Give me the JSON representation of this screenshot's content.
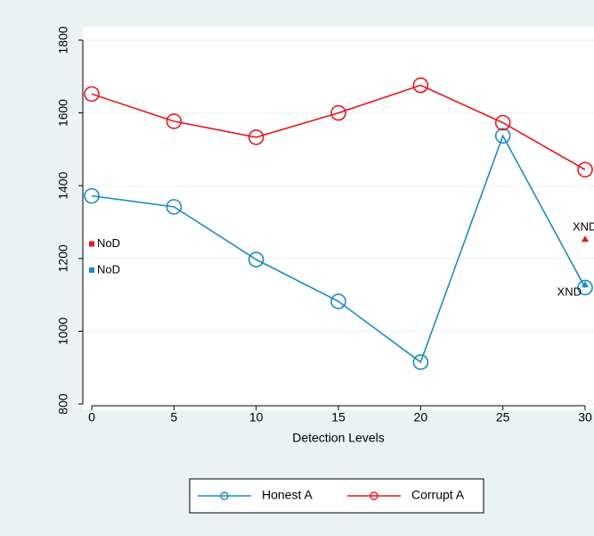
{
  "chart_data": {
    "type": "line",
    "x_label": "Detection Levels",
    "x": [
      0,
      5,
      10,
      15,
      20,
      25,
      30
    ],
    "series": [
      {
        "name": "Honest A",
        "color": "#1a8cbf",
        "values": [
          1372,
          1342,
          1197,
          1082,
          915,
          1537,
          1120
        ]
      },
      {
        "name": "Corrupt A",
        "color": "#e8161c",
        "values": [
          1652,
          1577,
          1533,
          1600,
          1676,
          1573,
          1444
        ]
      }
    ],
    "annotations": [
      {
        "text": "NoD",
        "x": 0,
        "y": 1240,
        "marker": "square",
        "color": "#e8161c"
      },
      {
        "text": "NoD",
        "x": 0,
        "y": 1168,
        "marker": "square",
        "color": "#1a8cbf"
      },
      {
        "text": "XND",
        "x": 30,
        "y": 1253,
        "marker": "triangle",
        "color": "#e8161c"
      },
      {
        "text": "XND",
        "x": 30,
        "y": 1128,
        "marker": "triangle",
        "color": "#1a8cbf"
      }
    ],
    "xlim": [
      0,
      30
    ],
    "xticks": [
      0,
      5,
      10,
      15,
      20,
      25,
      30
    ],
    "ylim": [
      800,
      1800
    ],
    "yticks": [
      800,
      1000,
      1200,
      1400,
      1600,
      1800
    ],
    "grid": true,
    "legend": "bottom"
  }
}
